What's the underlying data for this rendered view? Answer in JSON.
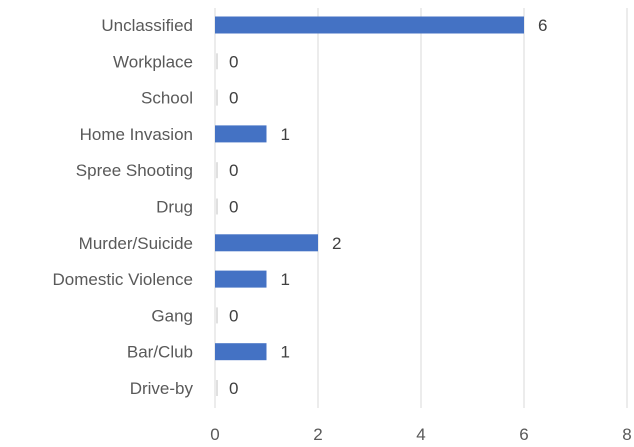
{
  "chart_data": {
    "type": "bar",
    "orientation": "horizontal",
    "title": "",
    "xlabel": "",
    "ylabel": "",
    "categories": [
      "Unclassified",
      "Workplace",
      "School",
      "Home Invasion",
      "Spree Shooting",
      "Drug",
      "Murder/Suicide",
      "Domestic Violence",
      "Gang",
      "Bar/Club",
      "Drive-by"
    ],
    "values": [
      6,
      0,
      0,
      1,
      0,
      0,
      2,
      1,
      0,
      1,
      0
    ],
    "data_labels": [
      "6",
      "0",
      "0",
      "1",
      "0",
      "0",
      "2",
      "1",
      "0",
      "1",
      "0"
    ],
    "xlim": [
      0,
      8
    ],
    "xticks": [
      0,
      2,
      4,
      6,
      8
    ],
    "xtick_labels": [
      "0",
      "2",
      "4",
      "6",
      "8"
    ],
    "grid": "vertical",
    "legend": "none",
    "colors": {
      "bar": "#4472c4",
      "gridline": "#d9d9d9",
      "text": "#595959"
    }
  }
}
